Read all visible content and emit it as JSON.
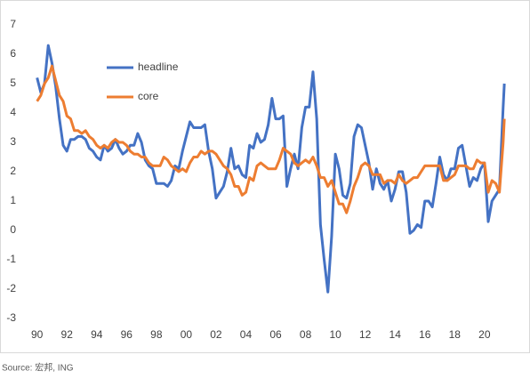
{
  "chart_data": {
    "type": "line",
    "x": [
      1990.0,
      1990.25,
      1990.5,
      1990.75,
      1991.0,
      1991.25,
      1991.5,
      1991.75,
      1992.0,
      1992.25,
      1992.5,
      1992.75,
      1993.0,
      1993.25,
      1993.5,
      1993.75,
      1994.0,
      1994.25,
      1994.5,
      1994.75,
      1995.0,
      1995.25,
      1995.5,
      1995.75,
      1996.0,
      1996.25,
      1996.5,
      1996.75,
      1997.0,
      1997.25,
      1997.5,
      1997.75,
      1998.0,
      1998.25,
      1998.5,
      1998.75,
      1999.0,
      1999.25,
      1999.5,
      1999.75,
      2000.0,
      2000.25,
      2000.5,
      2000.75,
      2001.0,
      2001.25,
      2001.5,
      2001.75,
      2002.0,
      2002.25,
      2002.5,
      2002.75,
      2003.0,
      2003.25,
      2003.5,
      2003.75,
      2004.0,
      2004.25,
      2004.5,
      2004.75,
      2005.0,
      2005.25,
      2005.5,
      2005.75,
      2006.0,
      2006.25,
      2006.5,
      2006.75,
      2007.0,
      2007.25,
      2007.5,
      2007.75,
      2008.0,
      2008.25,
      2008.5,
      2008.75,
      2009.0,
      2009.25,
      2009.5,
      2009.75,
      2010.0,
      2010.25,
      2010.5,
      2010.75,
      2011.0,
      2011.25,
      2011.5,
      2011.75,
      2012.0,
      2012.25,
      2012.5,
      2012.75,
      2013.0,
      2013.25,
      2013.5,
      2013.75,
      2014.0,
      2014.25,
      2014.5,
      2014.75,
      2015.0,
      2015.25,
      2015.5,
      2015.75,
      2016.0,
      2016.25,
      2016.5,
      2016.75,
      2017.0,
      2017.25,
      2017.5,
      2017.75,
      2018.0,
      2018.25,
      2018.5,
      2018.75,
      2019.0,
      2019.25,
      2019.5,
      2019.75,
      2020.0,
      2020.25,
      2020.5,
      2020.75,
      2021.0,
      2021.25,
      2021.33
    ],
    "series": [
      {
        "name": "headline",
        "color": "#4472c4",
        "values": [
          5.2,
          4.7,
          5.0,
          6.3,
          5.7,
          4.9,
          3.8,
          2.9,
          2.7,
          3.1,
          3.1,
          3.2,
          3.2,
          3.1,
          2.8,
          2.7,
          2.5,
          2.4,
          2.9,
          2.7,
          2.8,
          3.1,
          2.8,
          2.6,
          2.7,
          2.9,
          2.9,
          3.3,
          3.0,
          2.4,
          2.2,
          2.1,
          1.6,
          1.6,
          1.6,
          1.5,
          1.7,
          2.2,
          2.1,
          2.7,
          3.2,
          3.7,
          3.5,
          3.5,
          3.5,
          3.6,
          2.7,
          2.1,
          1.1,
          1.3,
          1.5,
          2.0,
          2.8,
          2.1,
          2.2,
          1.9,
          1.8,
          2.9,
          2.8,
          3.3,
          3.0,
          3.1,
          3.6,
          4.5,
          3.8,
          3.8,
          3.9,
          1.5,
          2.1,
          2.6,
          2.1,
          3.5,
          4.2,
          4.2,
          5.4,
          3.8,
          0.2,
          -1.0,
          -2.1,
          -0.2,
          2.6,
          2.1,
          1.2,
          1.1,
          1.6,
          3.2,
          3.6,
          3.5,
          2.9,
          2.3,
          1.4,
          2.1,
          1.6,
          1.4,
          1.7,
          1.0,
          1.4,
          2.0,
          2.0,
          1.3,
          -0.1,
          0.0,
          0.2,
          0.1,
          1.0,
          1.0,
          0.8,
          1.6,
          2.5,
          1.9,
          1.7,
          2.1,
          2.1,
          2.8,
          2.9,
          2.2,
          1.5,
          1.8,
          1.7,
          2.1,
          2.3,
          0.3,
          1.0,
          1.2,
          1.4,
          4.2,
          5.0
        ]
      },
      {
        "name": "core",
        "color": "#ed7d31",
        "values": [
          4.4,
          4.6,
          5.0,
          5.2,
          5.6,
          5.1,
          4.6,
          4.4,
          3.9,
          3.8,
          3.4,
          3.4,
          3.3,
          3.4,
          3.2,
          3.1,
          2.9,
          2.8,
          2.9,
          2.8,
          3.0,
          3.1,
          3.0,
          3.0,
          2.9,
          2.7,
          2.6,
          2.6,
          2.5,
          2.5,
          2.3,
          2.2,
          2.2,
          2.2,
          2.5,
          2.4,
          2.2,
          2.1,
          2.0,
          2.1,
          2.0,
          2.3,
          2.5,
          2.5,
          2.7,
          2.6,
          2.7,
          2.7,
          2.6,
          2.4,
          2.2,
          2.1,
          1.9,
          1.5,
          1.5,
          1.2,
          1.3,
          1.8,
          1.7,
          2.2,
          2.3,
          2.2,
          2.1,
          2.1,
          2.1,
          2.4,
          2.8,
          2.7,
          2.6,
          2.3,
          2.2,
          2.3,
          2.4,
          2.3,
          2.5,
          2.2,
          1.8,
          1.8,
          1.5,
          1.7,
          1.3,
          0.9,
          0.9,
          0.6,
          1.0,
          1.5,
          1.8,
          2.2,
          2.3,
          2.2,
          1.9,
          1.9,
          1.9,
          1.6,
          1.7,
          1.7,
          1.6,
          1.9,
          1.7,
          1.6,
          1.7,
          1.8,
          1.8,
          2.0,
          2.2,
          2.2,
          2.2,
          2.2,
          2.2,
          1.7,
          1.7,
          1.8,
          1.9,
          2.2,
          2.2,
          2.2,
          2.1,
          2.1,
          2.4,
          2.3,
          2.3,
          1.3,
          1.7,
          1.6,
          1.3,
          3.0,
          3.8
        ]
      }
    ],
    "xlim": [
      1989.9,
      2021.5
    ],
    "xticks": [
      {
        "value": 1990,
        "label": "90"
      },
      {
        "value": 1992,
        "label": "92"
      },
      {
        "value": 1994,
        "label": "94"
      },
      {
        "value": 1996,
        "label": "96"
      },
      {
        "value": 1998,
        "label": "98"
      },
      {
        "value": 2000,
        "label": "00"
      },
      {
        "value": 2002,
        "label": "02"
      },
      {
        "value": 2004,
        "label": "04"
      },
      {
        "value": 2006,
        "label": "06"
      },
      {
        "value": 2008,
        "label": "08"
      },
      {
        "value": 2010,
        "label": "10"
      },
      {
        "value": 2012,
        "label": "12"
      },
      {
        "value": 2014,
        "label": "14"
      },
      {
        "value": 2016,
        "label": "16"
      },
      {
        "value": 2018,
        "label": "18"
      },
      {
        "value": 2020,
        "label": "20"
      }
    ],
    "ylim": [
      -3,
      7
    ],
    "yticks": [
      -3,
      -2,
      -1,
      0,
      1,
      2,
      3,
      4,
      5,
      6,
      7
    ],
    "grid": false,
    "legend": "upper-left",
    "source": "Source: 宏邦, ING"
  }
}
